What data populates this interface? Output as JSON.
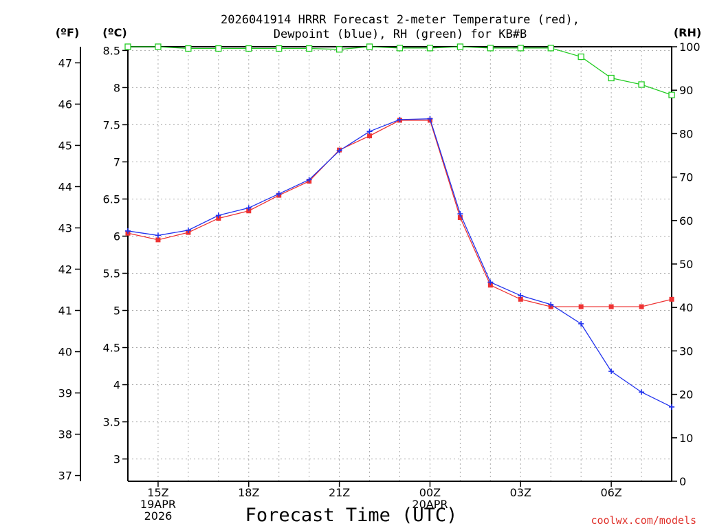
{
  "chart_data": {
    "type": "line",
    "title_line1": "2026041914 HRRR Forecast 2-meter Temperature (red),",
    "title_line2": "Dewpoint (blue), RH (green) for KB#B",
    "xlabel": "Forecast Time (UTC)",
    "credit": "coolwx.com/models",
    "units": {
      "left_f": "(ºF)",
      "left_c": "(ºC)",
      "right_rh": "(RH)"
    },
    "x_hours": [
      14,
      15,
      16,
      17,
      18,
      19,
      20,
      21,
      22,
      23,
      24,
      25,
      26,
      27,
      28,
      29,
      30,
      31,
      32
    ],
    "x_ticks": [
      {
        "hour": 15,
        "lines": [
          "15Z",
          "19APR",
          "2026"
        ]
      },
      {
        "hour": 18,
        "lines": [
          "18Z"
        ]
      },
      {
        "hour": 21,
        "lines": [
          "21Z"
        ]
      },
      {
        "hour": 24,
        "lines": [
          "00Z",
          "20APR"
        ]
      },
      {
        "hour": 27,
        "lines": [
          "03Z"
        ]
      },
      {
        "hour": 30,
        "lines": [
          "06Z"
        ]
      }
    ],
    "xlim": [
      14,
      32
    ],
    "c_axis": {
      "ylim": [
        2.7,
        8.55
      ],
      "ticks": [
        "3",
        "3.5",
        "4",
        "4.5",
        "5",
        "5.5",
        "6",
        "6.5",
        "7",
        "7.5",
        "8",
        "8.5"
      ]
    },
    "f_axis": {
      "ticks": [
        "37",
        "38",
        "39",
        "40",
        "41",
        "42",
        "43",
        "44",
        "45",
        "46",
        "47"
      ]
    },
    "rh_axis": {
      "ylim": [
        0,
        100
      ],
      "ticks": [
        "0",
        "10",
        "20",
        "30",
        "40",
        "50",
        "60",
        "70",
        "80",
        "90",
        "100"
      ]
    },
    "series": [
      {
        "name": "Temperature",
        "axis": "c",
        "color": "#ee3333",
        "marker": "square",
        "values": [
          6.04,
          5.95,
          6.05,
          6.24,
          6.34,
          6.55,
          6.74,
          7.16,
          7.35,
          7.56,
          7.56,
          6.25,
          5.34,
          5.15,
          5.05,
          5.05,
          5.05,
          5.05,
          5.15
        ]
      },
      {
        "name": "Dewpoint",
        "axis": "c",
        "color": "#2233ee",
        "marker": "plus",
        "values": [
          6.07,
          6.01,
          6.08,
          6.28,
          6.38,
          6.57,
          6.76,
          7.15,
          7.41,
          7.57,
          7.58,
          6.3,
          5.38,
          5.2,
          5.08,
          4.82,
          4.18,
          3.9,
          3.7
        ]
      },
      {
        "name": "RH",
        "axis": "rh",
        "color": "#22cc22",
        "marker": "open-square",
        "values": [
          100,
          100,
          99.6,
          99.6,
          99.6,
          99.6,
          99.6,
          99.4,
          100,
          99.7,
          99.7,
          100,
          99.7,
          99.7,
          99.7,
          97.7,
          92.8,
          91.3,
          88.9
        ]
      }
    ]
  }
}
